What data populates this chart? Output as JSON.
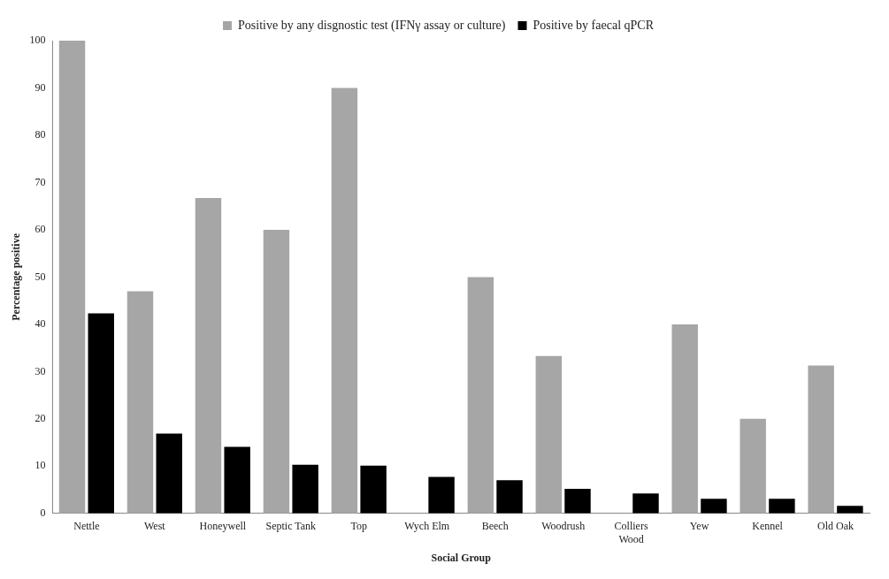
{
  "chart_data": {
    "type": "bar",
    "xlabel": "Social Group",
    "ylabel": "Percentage positive",
    "categories": [
      "Nettle",
      "West",
      "Honeywell",
      "Septic Tank",
      "Top",
      "Wych Elm",
      "Beech",
      "Woodrush",
      "Colliers Wood",
      "Yew",
      "Kennel",
      "Old Oak"
    ],
    "series": [
      {
        "name": "Positive by any disgnostic test (IFNγ assay or culture)",
        "color": "#a6a6a6",
        "values": [
          100,
          47,
          66.7,
          60,
          90,
          0,
          50,
          33.3,
          0,
          40,
          20,
          31.3
        ]
      },
      {
        "name": "Positive by faecal qPCR",
        "color": "#000000",
        "values": [
          42.3,
          16.9,
          14.1,
          10.3,
          10.1,
          7.7,
          7,
          5.2,
          4.2,
          3.1,
          3.1,
          1.6
        ]
      }
    ],
    "ylim": [
      0,
      100
    ],
    "yticks": [
      0,
      10,
      20,
      30,
      40,
      50,
      60,
      70,
      80,
      90,
      100
    ],
    "grid": false,
    "legend": "top"
  }
}
